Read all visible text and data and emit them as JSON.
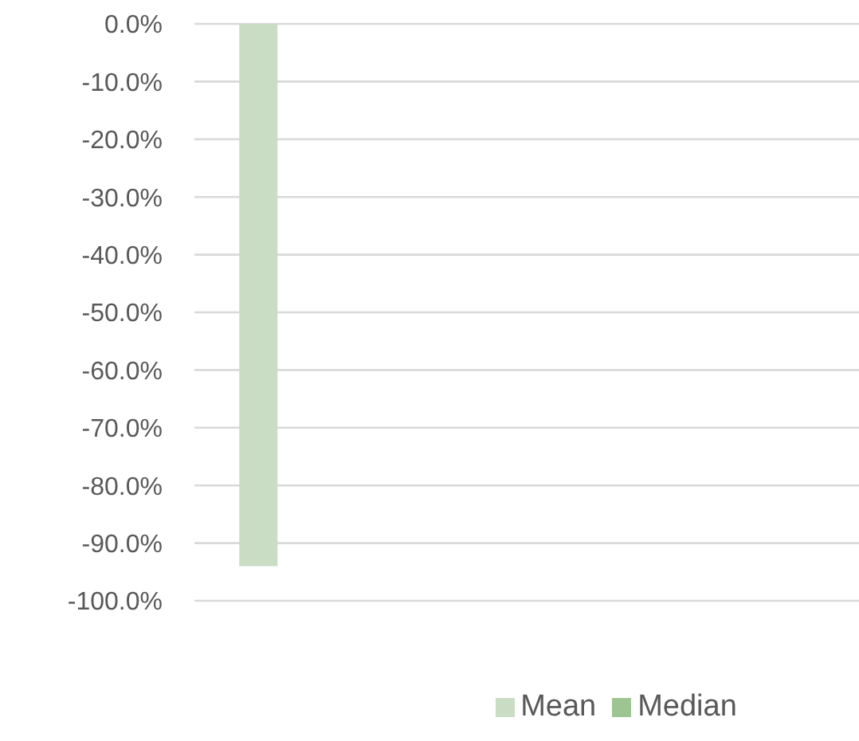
{
  "chart_data": {
    "type": "bar",
    "categories": [
      null,
      null,
      null,
      null
    ],
    "series": [
      {
        "name": "Mean",
        "color": "#c9dcc4",
        "values": [
          -94,
          null,
          null,
          null
        ]
      },
      {
        "name": "Median",
        "color": "#9dc592",
        "values": [
          null,
          null,
          null,
          null
        ]
      }
    ],
    "ylim": [
      -100,
      0
    ],
    "yticks": [
      {
        "value": 0,
        "label": "0.0%"
      },
      {
        "value": -10,
        "label": "-10.0%"
      },
      {
        "value": -20,
        "label": "-20.0%"
      },
      {
        "value": -30,
        "label": "-30.0%"
      },
      {
        "value": -40,
        "label": "-40.0%"
      },
      {
        "value": -50,
        "label": "-50.0%"
      },
      {
        "value": -60,
        "label": "-60.0%"
      },
      {
        "value": -70,
        "label": "-70.0%"
      },
      {
        "value": -80,
        "label": "-80.0%"
      },
      {
        "value": -90,
        "label": "-90.0%"
      },
      {
        "value": -100,
        "label": "-100.0%"
      }
    ],
    "grid": "y",
    "legend": "bottom"
  }
}
